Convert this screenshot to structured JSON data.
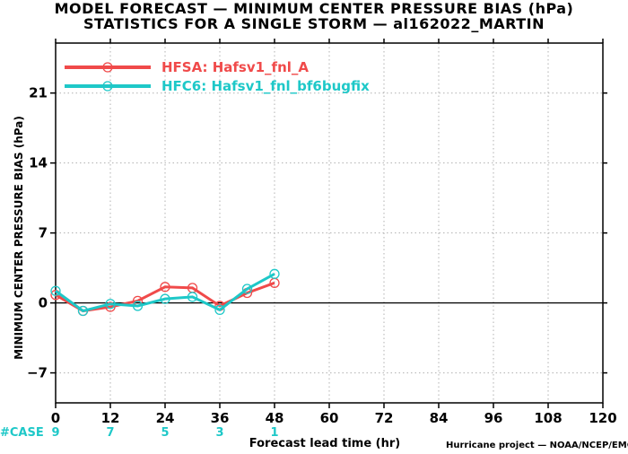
{
  "header": {
    "title_line1": "MODEL FORECAST — MINIMUM CENTER PRESSURE BIAS (hPa)",
    "title_line2": "STATISTICS FOR A SINGLE STORM — al162022_MARTIN"
  },
  "footer": {
    "credit": "Hurricane project — NOAA/NCEP/EMC",
    "case_label": "#CASE"
  },
  "chart_data": {
    "type": "line",
    "title": "MODEL FORECAST — MINIMUM CENTER PRESSURE BIAS (hPa)",
    "subtitle": "STATISTICS FOR A SINGLE STORM — al162022_MARTIN",
    "xlabel": "Forecast lead time (hr)",
    "ylabel": "MINIMUM CENTER PRESSURE BIAS (hPa)",
    "xlim": [
      0,
      120
    ],
    "ylim": [
      -10,
      26
    ],
    "xticks": [
      0,
      12,
      24,
      36,
      48,
      60,
      72,
      84,
      96,
      108,
      120
    ],
    "yticks": [
      -7,
      0,
      7,
      14,
      21
    ],
    "grid": true,
    "legend_position": "top-left",
    "series": [
      {
        "name": "HFSA: Hafsv1_fnl_A",
        "color": "#f04a4a",
        "x": [
          0,
          6,
          12,
          18,
          24,
          30,
          36,
          42,
          48
        ],
        "y": [
          0.8,
          -0.8,
          -0.4,
          0.2,
          1.6,
          1.5,
          -0.3,
          1.0,
          2.0
        ]
      },
      {
        "name": "HFC6: Hafsv1_fnl_bf6bugfix",
        "color": "#1ec8c8",
        "x": [
          0,
          6,
          12,
          18,
          24,
          30,
          36,
          42,
          48
        ],
        "y": [
          1.2,
          -0.8,
          -0.1,
          -0.3,
          0.4,
          0.6,
          -0.7,
          1.4,
          2.9
        ]
      }
    ],
    "case_counts": {
      "color": "#1ec8c8",
      "x": [
        0,
        12,
        24,
        36,
        48
      ],
      "values": [
        "9",
        "7",
        "5",
        "3",
        "1"
      ]
    }
  }
}
